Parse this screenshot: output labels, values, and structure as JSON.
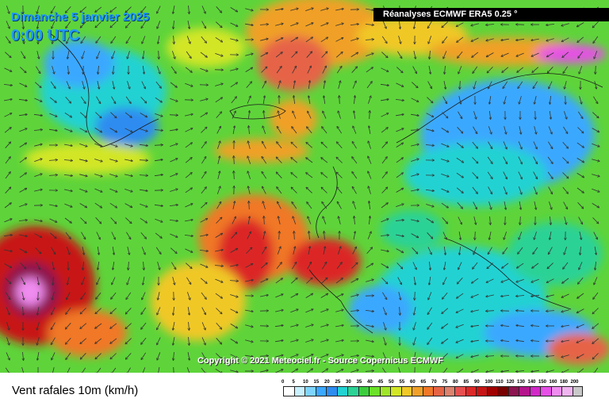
{
  "header": {
    "date": "Dimanche 5 janvier 2025",
    "time": "0:00 UTC",
    "source": "Réanalyses ECMWF ERA5 0.25 °"
  },
  "footer": {
    "copyright": "Copyright © 2021 Meteociel.fr - Source Copernicus ECMWF",
    "variable": "Vent rafales 10m (km/h)"
  },
  "legend": {
    "labels": [
      "0",
      "5",
      "10",
      "15",
      "20",
      "25",
      "30",
      "35",
      "40",
      "45",
      "50",
      "55",
      "60",
      "65",
      "70",
      "75",
      "80",
      "85",
      "90",
      "100",
      "110",
      "120",
      "130",
      "140",
      "150",
      "160",
      "180",
      "200"
    ],
    "colors": [
      "#ffffff",
      "#c8f0ff",
      "#7fd4ff",
      "#3aa8ff",
      "#2d8cf0",
      "#23d2d2",
      "#2ad296",
      "#3ccd3c",
      "#6be12a",
      "#a0e628",
      "#d2e628",
      "#f0c828",
      "#f0a028",
      "#f07828",
      "#e66446",
      "#dc826e",
      "#e65050",
      "#dc2828",
      "#c81414",
      "#a00000",
      "#780000",
      "#8c1450",
      "#b4148c",
      "#d228c8",
      "#e650e6",
      "#f08cf0",
      "#f0b4f0",
      "#c8c8c8"
    ]
  },
  "icons": {
    "wind_arrow": "wind-direction-arrow"
  }
}
